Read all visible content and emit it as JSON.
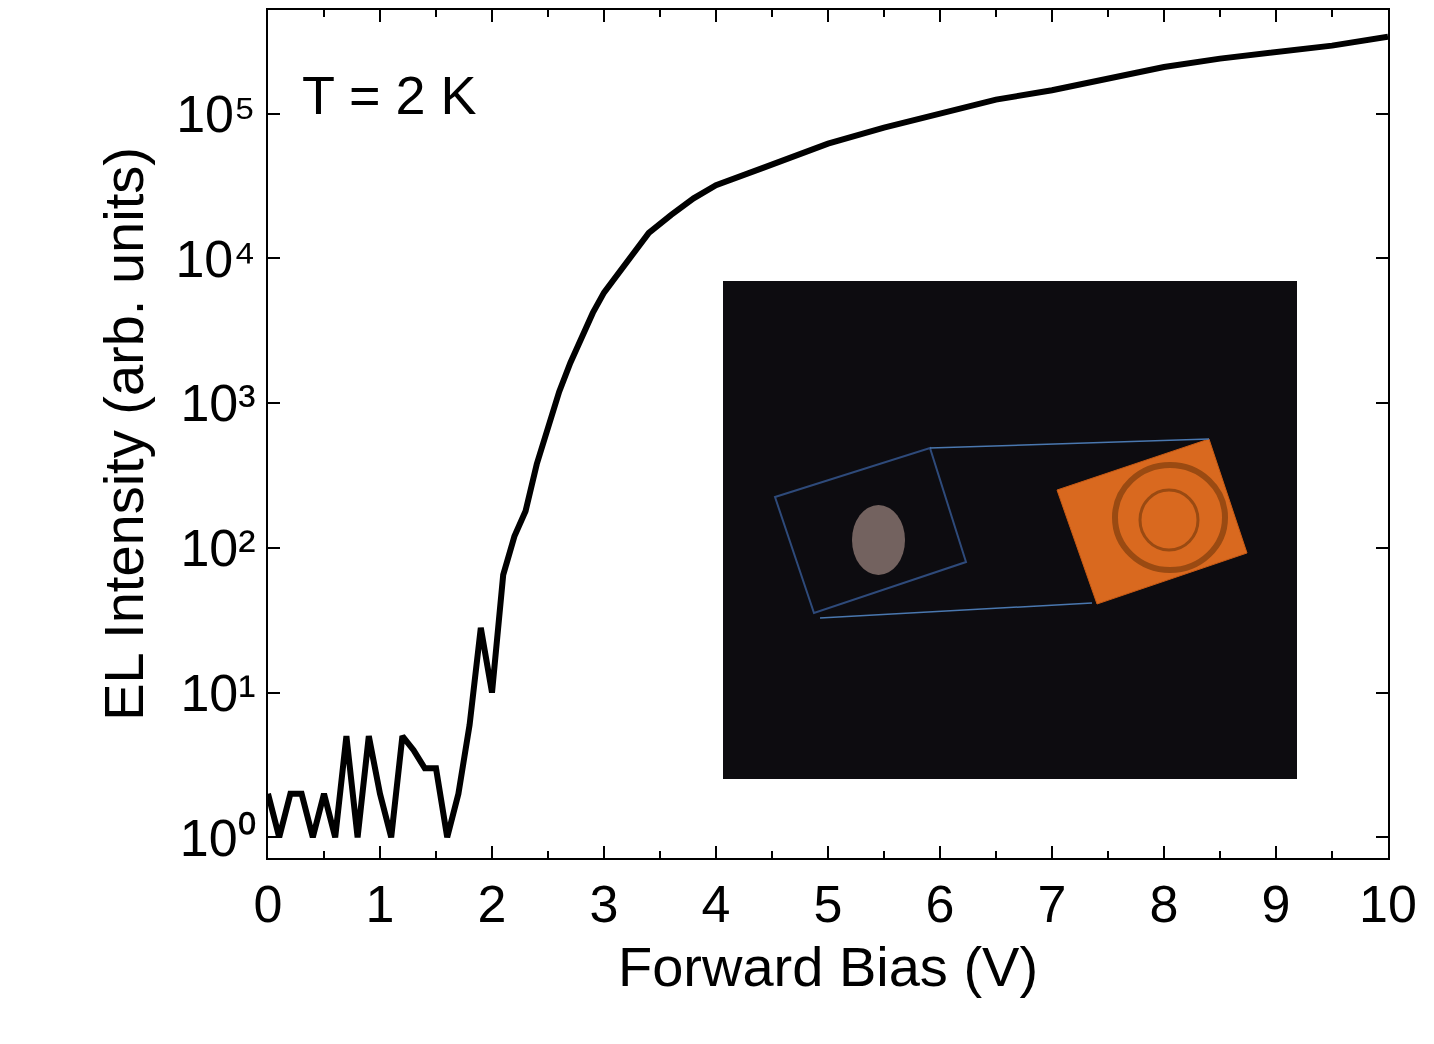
{
  "chart_data": {
    "type": "line",
    "xlabel": "Forward Bias (V)",
    "ylabel": "EL Intensity (arb. units)",
    "annotations": [
      "T = 2 K"
    ],
    "log": "y",
    "grid": false,
    "color": "#000000",
    "x": [
      0,
      0.1,
      0.2,
      0.3,
      0.4,
      0.5,
      0.6,
      0.7,
      0.8,
      0.9,
      1.0,
      1.1,
      1.2,
      1.3,
      1.4,
      1.5,
      1.6,
      1.7,
      1.8,
      1.9,
      2.0,
      2.1,
      2.2,
      2.3,
      2.4,
      2.5,
      2.6,
      2.7,
      2.8,
      2.9,
      3.0,
      3.2,
      3.4,
      3.6,
      3.8,
      4.0,
      4.5,
      5.0,
      5.5,
      6.0,
      6.5,
      7.0,
      7.5,
      8.0,
      8.5,
      9.0,
      9.5,
      10.0
    ],
    "values": [
      2,
      1,
      2,
      2,
      1,
      2,
      1,
      5,
      1,
      5,
      2,
      1,
      5,
      4,
      3,
      3,
      1,
      2,
      6,
      28,
      10,
      65,
      120,
      180,
      380,
      700,
      1200,
      1900,
      2900,
      4200,
      5800,
      9500,
      15000,
      20000,
      26000,
      32000,
      45000,
      62000,
      80000,
      100000,
      125000,
      145000,
      175000,
      210000,
      240000,
      265000,
      295000,
      340000
    ],
    "xlim": [
      0,
      10
    ],
    "ylim": [
      0.72,
      520000
    ],
    "xticks": [
      0,
      1,
      2,
      3,
      4,
      5,
      6,
      7,
      8,
      9,
      10
    ],
    "yticks": [
      {
        "value": 1,
        "label": "10⁰"
      },
      {
        "value": 10,
        "label": "10¹"
      },
      {
        "value": 100,
        "label": "10²"
      },
      {
        "value": 1000,
        "label": "10³"
      },
      {
        "value": 10000,
        "label": "10⁴"
      },
      {
        "value": 100000,
        "label": "10⁵"
      }
    ]
  }
}
